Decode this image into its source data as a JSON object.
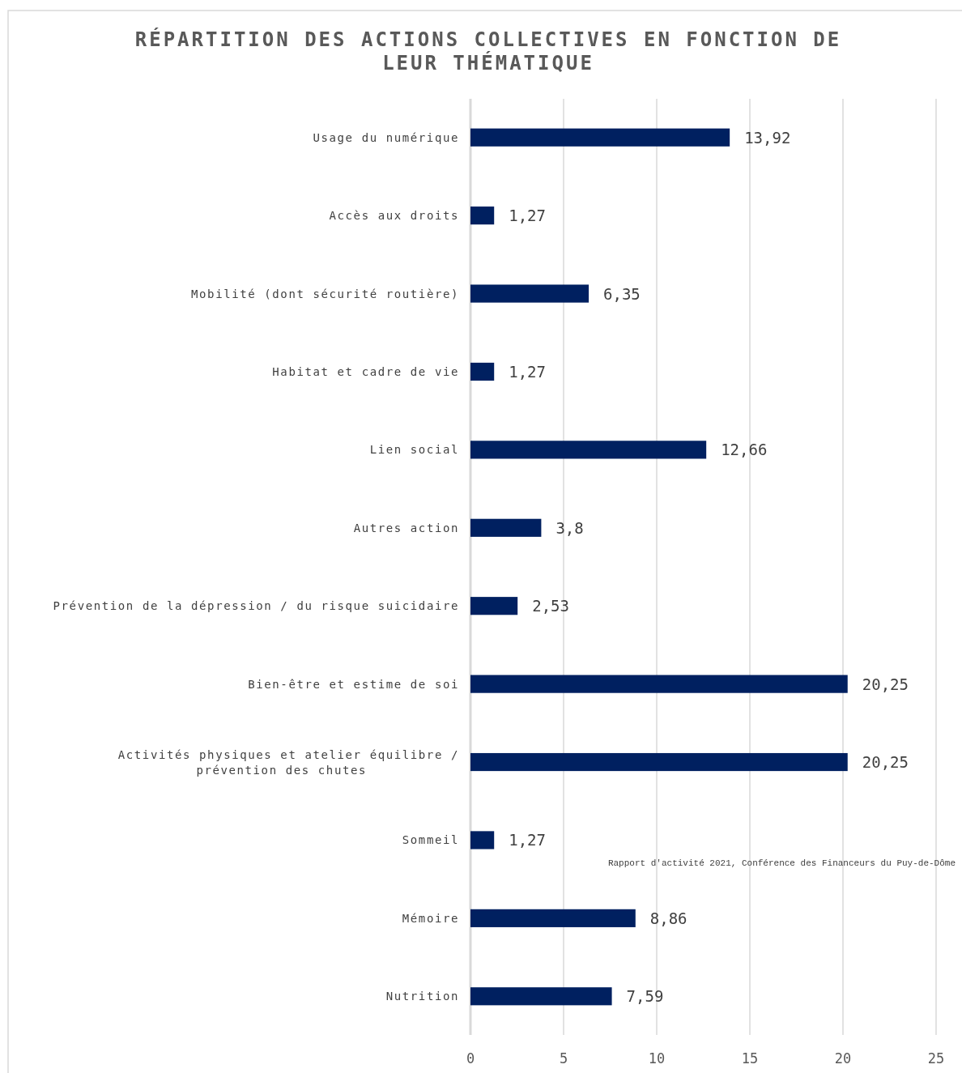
{
  "chart_data": {
    "type": "bar",
    "orientation": "horizontal",
    "title": "RÉPARTITION DES ACTIONS COLLECTIVES EN FONCTION DE LEUR THÉMATIQUE",
    "categories": [
      "Usage du numérique",
      "Accès aux droits",
      "Mobilité (dont sécurité routière)",
      "Habitat et cadre de vie",
      "Lien social",
      "Autres action",
      "Prévention de la dépression / du risque suicidaire",
      "Bien-être et estime de soi",
      "Activités physiques et atelier équilibre / prévention des chutes",
      "Sommeil",
      "Mémoire",
      "Nutrition"
    ],
    "values": [
      13.92,
      1.27,
      6.35,
      1.27,
      12.66,
      3.8,
      2.53,
      20.25,
      20.25,
      1.27,
      8.86,
      7.59
    ],
    "value_labels": [
      "13,92",
      "1,27",
      "6,35",
      "1,27",
      "12,66",
      "3,8",
      "2,53",
      "20,25",
      "20,25",
      "1,27",
      "8,86",
      "7,59"
    ],
    "color": "#002060",
    "xlim": [
      0,
      25
    ],
    "xticks": [
      0,
      5,
      10,
      15,
      20,
      25
    ],
    "grid": "x",
    "annotations": [
      "Rapport d'activité 2021, Conférence des Financeurs du Puy-de-Dôme"
    ]
  }
}
